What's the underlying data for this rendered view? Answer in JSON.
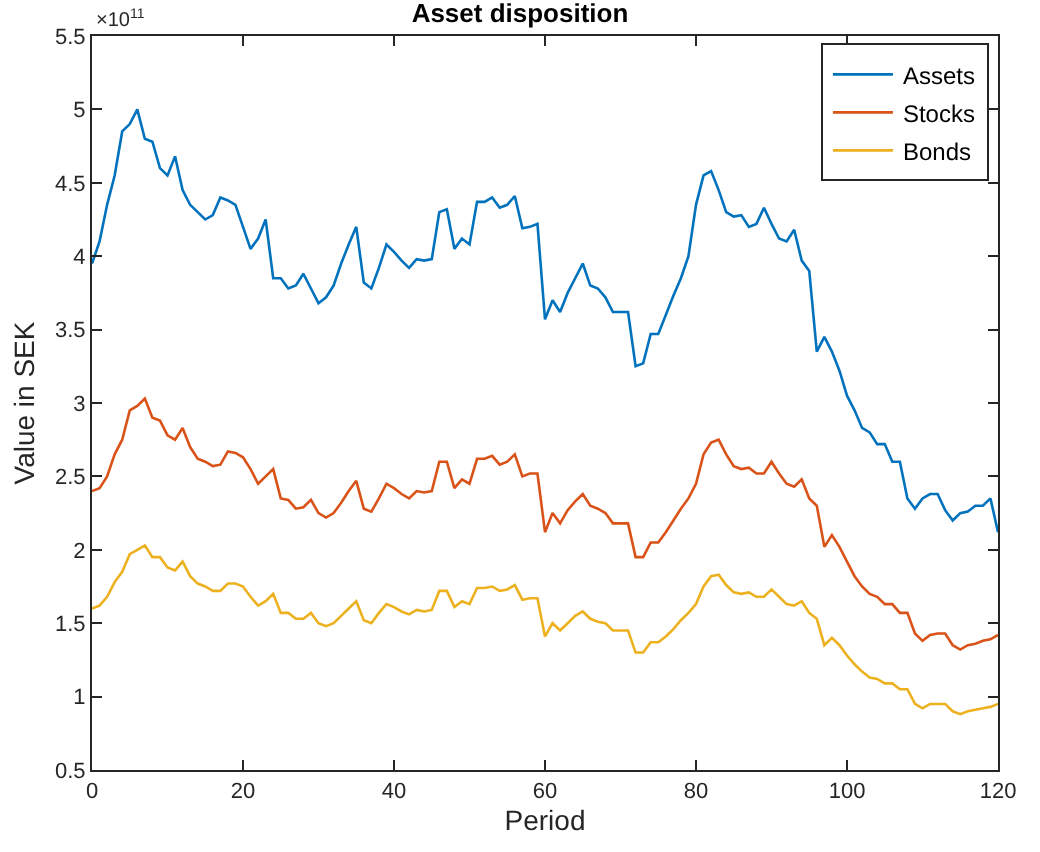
{
  "chart_data": {
    "type": "line",
    "title": "Asset disposition",
    "xlabel": "Period",
    "ylabel": "Value in SEK",
    "annotations": [
      "×10$^{11}$"
    ],
    "x": [
      0,
      1,
      2,
      3,
      4,
      5,
      6,
      7,
      8,
      9,
      10,
      11,
      12,
      13,
      14,
      15,
      16,
      17,
      18,
      19,
      20,
      21,
      22,
      23,
      24,
      25,
      26,
      27,
      28,
      29,
      30,
      31,
      32,
      33,
      34,
      35,
      36,
      37,
      38,
      39,
      40,
      41,
      42,
      43,
      44,
      45,
      46,
      47,
      48,
      49,
      50,
      51,
      52,
      53,
      54,
      55,
      56,
      57,
      58,
      59,
      60,
      61,
      62,
      63,
      64,
      65,
      66,
      67,
      68,
      69,
      70,
      71,
      72,
      73,
      74,
      75,
      76,
      77,
      78,
      79,
      80,
      81,
      82,
      83,
      84,
      85,
      86,
      87,
      88,
      89,
      90,
      91,
      92,
      93,
      94,
      95,
      96,
      97,
      98,
      99,
      100,
      101,
      102,
      103,
      104,
      105,
      106,
      107,
      108,
      109,
      110,
      111,
      112,
      113,
      114,
      115,
      116,
      117,
      118,
      119,
      120
    ],
    "xlim": [
      0,
      120
    ],
    "xticks": [
      0,
      20,
      40,
      60,
      80,
      100,
      120
    ],
    "ylim": [
      0.5,
      5.5
    ],
    "yticks": [
      0.5,
      1,
      1.5,
      2,
      2.5,
      3,
      3.5,
      4,
      4.5,
      5,
      5.5
    ],
    "legend": "top right",
    "marker": "none",
    "line_style": "solid",
    "series": [
      {
        "name": "Assets",
        "color": "#0072bd",
        "values": [
          3.95,
          4.1,
          4.35,
          4.55,
          4.85,
          4.9,
          5.0,
          4.8,
          4.78,
          4.6,
          4.55,
          4.68,
          4.45,
          4.35,
          4.3,
          4.25,
          4.28,
          4.4,
          4.38,
          4.35,
          4.2,
          4.05,
          4.12,
          4.25,
          3.85,
          3.85,
          3.78,
          3.8,
          3.88,
          3.78,
          3.68,
          3.72,
          3.8,
          3.95,
          4.08,
          4.2,
          3.82,
          3.78,
          3.92,
          4.08,
          4.03,
          3.97,
          3.92,
          3.98,
          3.97,
          3.98,
          4.3,
          4.32,
          4.05,
          4.12,
          4.08,
          4.37,
          4.37,
          4.4,
          4.33,
          4.35,
          4.41,
          4.19,
          4.2,
          4.22,
          3.57,
          3.7,
          3.62,
          3.75,
          3.85,
          3.95,
          3.8,
          3.78,
          3.72,
          3.62,
          3.62,
          3.62,
          3.25,
          3.27,
          3.47,
          3.47,
          3.6,
          3.73,
          3.85,
          4.0,
          4.35,
          4.55,
          4.58,
          4.45,
          4.3,
          4.27,
          4.28,
          4.2,
          4.22,
          4.33,
          4.22,
          4.12,
          4.1,
          4.18,
          3.97,
          3.9,
          3.35,
          3.45,
          3.35,
          3.22,
          3.05,
          2.95,
          2.83,
          2.8,
          2.72,
          2.72,
          2.6,
          2.6,
          2.35,
          2.28,
          2.35,
          2.38,
          2.38,
          2.27,
          2.2,
          2.25,
          2.26,
          2.3,
          2.3,
          2.35,
          2.12
        ]
      },
      {
        "name": "Stocks",
        "color": "#d95319",
        "values": [
          2.4,
          2.42,
          2.5,
          2.65,
          2.75,
          2.95,
          2.98,
          3.03,
          2.9,
          2.88,
          2.78,
          2.75,
          2.83,
          2.7,
          2.62,
          2.6,
          2.57,
          2.58,
          2.67,
          2.66,
          2.63,
          2.55,
          2.45,
          2.5,
          2.55,
          2.35,
          2.34,
          2.28,
          2.29,
          2.34,
          2.25,
          2.22,
          2.25,
          2.32,
          2.4,
          2.47,
          2.28,
          2.26,
          2.35,
          2.45,
          2.42,
          2.38,
          2.35,
          2.4,
          2.39,
          2.4,
          2.6,
          2.6,
          2.42,
          2.48,
          2.45,
          2.62,
          2.62,
          2.64,
          2.58,
          2.6,
          2.65,
          2.5,
          2.52,
          2.52,
          2.12,
          2.25,
          2.18,
          2.27,
          2.33,
          2.38,
          2.3,
          2.28,
          2.25,
          2.18,
          2.18,
          2.18,
          1.95,
          1.95,
          2.05,
          2.05,
          2.12,
          2.2,
          2.28,
          2.35,
          2.45,
          2.65,
          2.73,
          2.75,
          2.65,
          2.57,
          2.55,
          2.56,
          2.52,
          2.52,
          2.6,
          2.52,
          2.45,
          2.43,
          2.48,
          2.35,
          2.3,
          2.02,
          2.1,
          2.02,
          1.92,
          1.82,
          1.75,
          1.7,
          1.68,
          1.63,
          1.63,
          1.57,
          1.57,
          1.43,
          1.38,
          1.42,
          1.43,
          1.43,
          1.35,
          1.32,
          1.35,
          1.36,
          1.38,
          1.39,
          1.42
        ]
      },
      {
        "name": "Bonds",
        "color": "#edb120",
        "values": [
          1.6,
          1.62,
          1.68,
          1.78,
          1.85,
          1.97,
          2.0,
          2.03,
          1.95,
          1.95,
          1.88,
          1.86,
          1.92,
          1.82,
          1.77,
          1.75,
          1.72,
          1.72,
          1.77,
          1.77,
          1.75,
          1.68,
          1.62,
          1.65,
          1.7,
          1.57,
          1.57,
          1.53,
          1.53,
          1.57,
          1.5,
          1.48,
          1.5,
          1.55,
          1.6,
          1.65,
          1.52,
          1.5,
          1.57,
          1.63,
          1.61,
          1.58,
          1.56,
          1.59,
          1.58,
          1.59,
          1.72,
          1.72,
          1.61,
          1.65,
          1.63,
          1.74,
          1.74,
          1.75,
          1.72,
          1.73,
          1.76,
          1.66,
          1.67,
          1.67,
          1.41,
          1.5,
          1.45,
          1.5,
          1.55,
          1.58,
          1.53,
          1.51,
          1.5,
          1.45,
          1.45,
          1.45,
          1.3,
          1.3,
          1.37,
          1.37,
          1.41,
          1.46,
          1.52,
          1.57,
          1.63,
          1.75,
          1.82,
          1.83,
          1.76,
          1.71,
          1.7,
          1.71,
          1.68,
          1.68,
          1.73,
          1.68,
          1.63,
          1.62,
          1.65,
          1.57,
          1.53,
          1.35,
          1.4,
          1.35,
          1.28,
          1.22,
          1.17,
          1.13,
          1.12,
          1.09,
          1.09,
          1.05,
          1.05,
          0.95,
          0.92,
          0.95,
          0.95,
          0.95,
          0.9,
          0.88,
          0.9,
          0.91,
          0.92,
          0.93,
          0.95
        ]
      }
    ]
  }
}
